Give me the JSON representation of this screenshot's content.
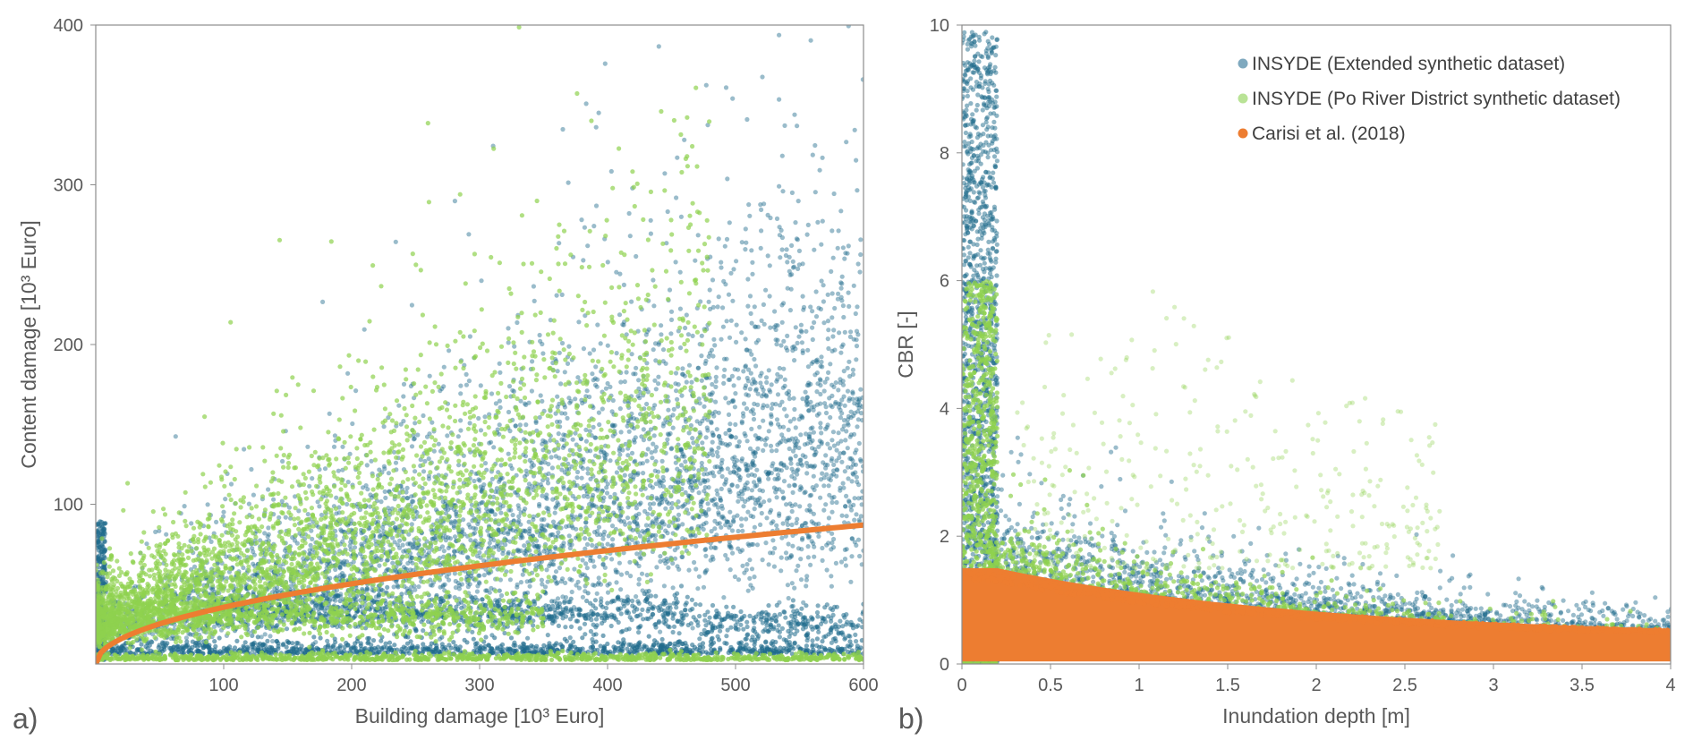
{
  "panels": [
    {
      "label": "a)"
    },
    {
      "label": "b)"
    }
  ],
  "colors": {
    "extended": "#1f6b8c",
    "po_river": "#8fd14f",
    "carisi": "#ed7d31",
    "frame": "#8c8c8c",
    "text": "#595959"
  },
  "chart_data": [
    {
      "type": "scatter",
      "xlabel": "Building damage [10³ Euro]",
      "ylabel": "Content damage [10³ Euro]",
      "xlim": [
        0,
        600
      ],
      "ylim": [
        0,
        400
      ],
      "xticks": [
        100,
        200,
        300,
        400,
        500,
        600
      ],
      "yticks": [
        100,
        200,
        300,
        400
      ],
      "grid": false,
      "series": [
        {
          "name": "INSYDE (Extended synthetic dataset)",
          "kind": "points",
          "note_points": [
            [
              6,
              130
            ],
            [
              28,
              126
            ],
            [
              78,
              206
            ],
            [
              365,
              346
            ],
            [
              470,
              383
            ],
            [
              570,
              384
            ],
            [
              597,
              372
            ],
            [
              520,
              362
            ],
            [
              440,
              325
            ],
            [
              530,
              330
            ],
            [
              390,
              315
            ],
            [
              300,
              255
            ],
            [
              210,
              240
            ],
            [
              560,
              310
            ],
            [
              590,
              300
            ],
            [
              600,
              240
            ],
            [
              480,
              280
            ],
            [
              420,
              290
            ],
            [
              350,
              260
            ],
            [
              250,
              230
            ],
            [
              160,
              190
            ],
            [
              120,
              170
            ],
            [
              90,
              160
            ],
            [
              60,
              130
            ],
            [
              40,
              110
            ],
            [
              20,
              100
            ],
            [
              15,
              80
            ],
            [
              10,
              60
            ],
            [
              50,
              90
            ],
            [
              100,
              120
            ],
            [
              150,
              150
            ],
            [
              200,
              170
            ],
            [
              260,
              190
            ],
            [
              320,
              210
            ],
            [
              380,
              220
            ],
            [
              440,
              240
            ],
            [
              500,
              250
            ],
            [
              550,
              260
            ],
            [
              590,
              270
            ],
            [
              300,
              40
            ],
            [
              350,
              35
            ],
            [
              400,
              30
            ],
            [
              450,
              28
            ],
            [
              500,
              25
            ],
            [
              550,
              22
            ],
            [
              600,
              10
            ],
            [
              450,
              8
            ],
            [
              300,
              7
            ],
            [
              200,
              8
            ],
            [
              100,
              6
            ]
          ]
        },
        {
          "name": "INSYDE (Po River District synthetic dataset)",
          "kind": "points",
          "note_points": [
            [
              130,
              255
            ],
            [
              160,
              250
            ],
            [
              175,
              232
            ],
            [
              70,
              175
            ],
            [
              90,
              150
            ],
            [
              40,
              120
            ],
            [
              20,
              95
            ],
            [
              10,
              70
            ],
            [
              5,
              40
            ],
            [
              30,
              60
            ],
            [
              60,
              90
            ],
            [
              100,
              120
            ],
            [
              140,
              140
            ],
            [
              180,
              155
            ],
            [
              220,
              165
            ],
            [
              260,
              175
            ],
            [
              300,
              185
            ],
            [
              340,
              190
            ],
            [
              380,
              195
            ],
            [
              420,
              200
            ],
            [
              460,
              210
            ],
            [
              500,
              215
            ],
            [
              540,
              220
            ],
            [
              580,
              225
            ],
            [
              600,
              230
            ],
            [
              50,
              40
            ],
            [
              100,
              38
            ],
            [
              150,
              36
            ],
            [
              200,
              34
            ],
            [
              250,
              32
            ],
            [
              300,
              30
            ],
            [
              100,
              5
            ],
            [
              200,
              4
            ],
            [
              300,
              4
            ],
            [
              400,
              3
            ],
            [
              500,
              3
            ],
            [
              600,
              3
            ]
          ]
        },
        {
          "name": "Carisi et al. (2018)",
          "kind": "curve",
          "function": "y = 3.55 * x^0.5",
          "x": [
            0,
            5,
            20,
            50,
            100,
            150,
            200,
            250,
            300,
            350,
            400,
            450,
            500,
            550,
            600
          ],
          "y": [
            0,
            7.9,
            15.9,
            25.1,
            35.5,
            43.5,
            50.2,
            56.1,
            61.5,
            66.4,
            71.0,
            75.3,
            79.4,
            83.3,
            87.0
          ]
        }
      ]
    },
    {
      "type": "scatter",
      "xlabel": "Inundation depth [m]",
      "ylabel": "CBR [-]",
      "xlim": [
        0,
        4
      ],
      "ylim": [
        0,
        10
      ],
      "xticks": [
        "0",
        "0.5",
        "1",
        "1.5",
        "2",
        "2.5",
        "3",
        "3.5",
        "4"
      ],
      "yticks": [
        "0",
        "2",
        "4",
        "6",
        "8",
        "10"
      ],
      "legend": "top-right",
      "grid": false,
      "series": [
        {
          "name": "INSYDE (Extended synthetic dataset)",
          "kind": "points",
          "note_points": [
            [
              0.05,
              9.9
            ],
            [
              0.08,
              9.7
            ],
            [
              0.1,
              9.5
            ],
            [
              0.12,
              9.8
            ],
            [
              0.15,
              9.2
            ],
            [
              0.3,
              9.95
            ],
            [
              0.28,
              9.3
            ],
            [
              0.22,
              8.0
            ],
            [
              0.4,
              6.8
            ],
            [
              0.25,
              4.0
            ],
            [
              0.35,
              3.5
            ],
            [
              0.5,
              3.0
            ],
            [
              0.6,
              2.8
            ],
            [
              0.8,
              2.5
            ],
            [
              1.0,
              2.4
            ],
            [
              1.2,
              2.2
            ],
            [
              1.4,
              2.1
            ],
            [
              1.6,
              1.9
            ],
            [
              1.8,
              1.8
            ],
            [
              2.0,
              1.6
            ],
            [
              2.2,
              1.4
            ],
            [
              2.4,
              1.2
            ],
            [
              2.6,
              1.1
            ],
            [
              2.8,
              1.0
            ],
            [
              3.0,
              0.9
            ],
            [
              3.2,
              0.8
            ],
            [
              3.4,
              0.7
            ],
            [
              3.6,
              0.6
            ],
            [
              3.8,
              0.55
            ],
            [
              4.0,
              0.5
            ],
            [
              3.9,
              1.4
            ],
            [
              3.5,
              1.5
            ],
            [
              3.3,
              1.6
            ],
            [
              1.15,
              3.1
            ],
            [
              1.8,
              2.8
            ]
          ]
        },
        {
          "name": "INSYDE (Po River District synthetic dataset)",
          "kind": "points",
          "note_points": [
            [
              0.05,
              5.9
            ],
            [
              0.1,
              5.5
            ],
            [
              0.15,
              5.0
            ],
            [
              0.12,
              4.5
            ],
            [
              0.2,
              4.0
            ],
            [
              0.25,
              6.2
            ],
            [
              0.45,
              5.5
            ],
            [
              0.6,
              5.7
            ],
            [
              0.85,
              5.2
            ],
            [
              1.0,
              6.1
            ],
            [
              1.07,
              6.35
            ],
            [
              1.2,
              5.4
            ],
            [
              1.5,
              5.3
            ],
            [
              1.7,
              3.2
            ],
            [
              2.0,
              3.1
            ],
            [
              2.5,
              1.6
            ],
            [
              3.0,
              1.3
            ],
            [
              1.0,
              2.8
            ],
            [
              0.7,
              3.2
            ],
            [
              0.5,
              2.4
            ],
            [
              1.3,
              2.2
            ],
            [
              1.8,
              1.6
            ],
            [
              2.2,
              1.2
            ],
            [
              2.8,
              0.9
            ],
            [
              3.4,
              0.6
            ],
            [
              4.0,
              0.4
            ]
          ]
        },
        {
          "name": "Carisi et al. (2018)",
          "kind": "band",
          "note_points": [
            [
              0,
              1.5
            ],
            [
              0.2,
              1.5
            ],
            [
              0.5,
              1.3
            ],
            [
              1.0,
              1.1
            ],
            [
              1.5,
              0.95
            ],
            [
              2.0,
              0.8
            ],
            [
              2.5,
              0.65
            ],
            [
              3.0,
              0.55
            ],
            [
              3.5,
              0.5
            ],
            [
              4.0,
              0.45
            ],
            [
              0,
              0.05
            ],
            [
              4.0,
              0.05
            ]
          ]
        }
      ]
    }
  ]
}
